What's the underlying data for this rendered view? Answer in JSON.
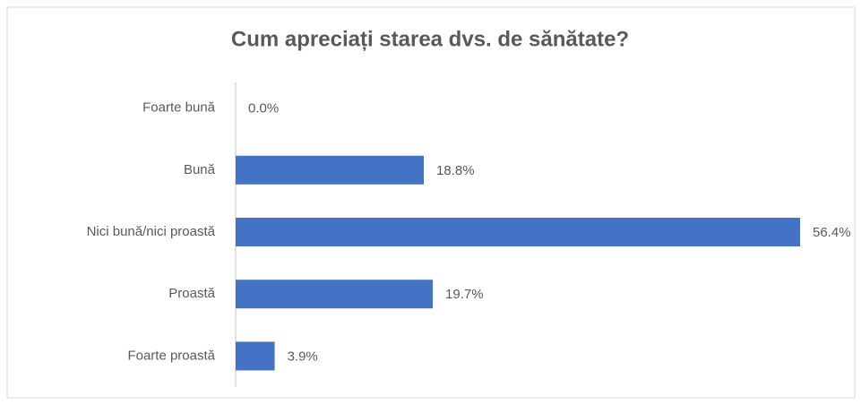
{
  "chart_data": {
    "type": "hbar",
    "title": "Cum apreciați starea dvs. de sănătate?",
    "categories": [
      "Foarte bună",
      "Bună",
      "Nici bună/nici proastă",
      "Proastă",
      "Foarte proastă"
    ],
    "values": [
      0.0,
      18.8,
      56.4,
      19.7,
      3.9
    ],
    "value_labels": [
      "0.0%",
      "18.8%",
      "56.4%",
      "19.7%",
      "3.9%"
    ],
    "color": "#4472c4"
  }
}
